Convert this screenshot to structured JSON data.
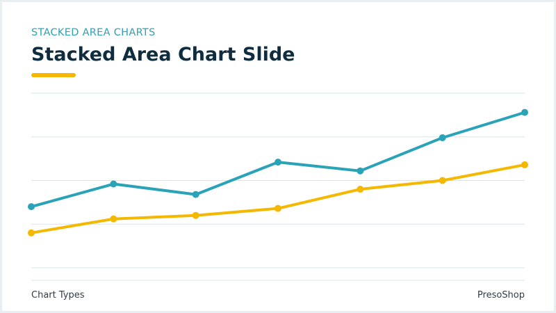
{
  "slide": {
    "kicker": "STACKED AREA CHARTS",
    "title": "Stacked Area Chart Slide",
    "footer_left": "Chart Types",
    "footer_right": "PresoShop",
    "accent_color": "#f5b800"
  },
  "chart_data": {
    "type": "line",
    "title": "",
    "xlabel": "",
    "ylabel": "",
    "x": [
      1,
      2,
      3,
      4,
      5,
      6,
      7
    ],
    "ylim": [
      0,
      20
    ],
    "grid": true,
    "legend": "none",
    "series": [
      {
        "color": "#2aa3b8",
        "values": [
          7.0,
          9.6,
          8.4,
          12.1,
          11.1,
          14.9,
          17.8
        ]
      },
      {
        "color": "#f5b800",
        "values": [
          4.0,
          5.6,
          6.0,
          6.8,
          9.0,
          10.0,
          11.8
        ]
      }
    ]
  }
}
